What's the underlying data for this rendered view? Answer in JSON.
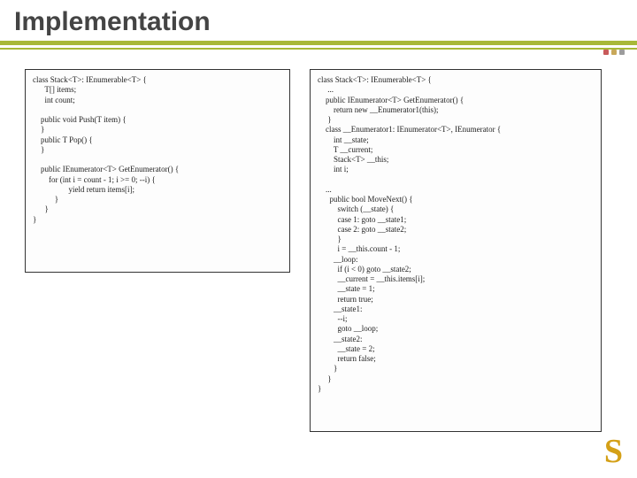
{
  "title": "Implementation",
  "rule_color": "#a8b838",
  "dots": [
    "#c85a5a",
    "#c8a85a",
    "#9c9c9c"
  ],
  "watermark": "S",
  "watermark_color": "#d4a017",
  "code_left": "class Stack<T>: IEnumerable<T> {\n      T[] items;\n      int count;\n\n    public void Push(T item) {\n    }\n    public T Pop() {\n    }\n\n    public IEnumerator<T> GetEnumerator() {\n        for (int i = count - 1; i >= 0; --i) {\n                  yield return items[i];\n           }\n      }\n}",
  "code_right": "class Stack<T>: IEnumerable<T> {\n     ...\n    public IEnumerator<T> GetEnumerator() {\n        return new __Enumerator1(this);\n     }\n    class __Enumerator1: IEnumerator<T>, IEnumerator {\n        int __state;\n        T __current;\n        Stack<T> __this;\n        int i;\n\n    ...\n      public bool MoveNext() {\n          switch (__state) {\n          case 1: goto __state1;\n          case 2: goto __state2;\n          }\n          i = __this.count - 1;\n        __loop:\n          if (i < 0) goto __state2;\n          __current = __this.items[i];\n          __state = 1;\n          return true;\n        __state1:\n          --i;\n          goto __loop;\n        __state2:\n          __state = 2;\n          return false;\n        }\n     }\n}"
}
